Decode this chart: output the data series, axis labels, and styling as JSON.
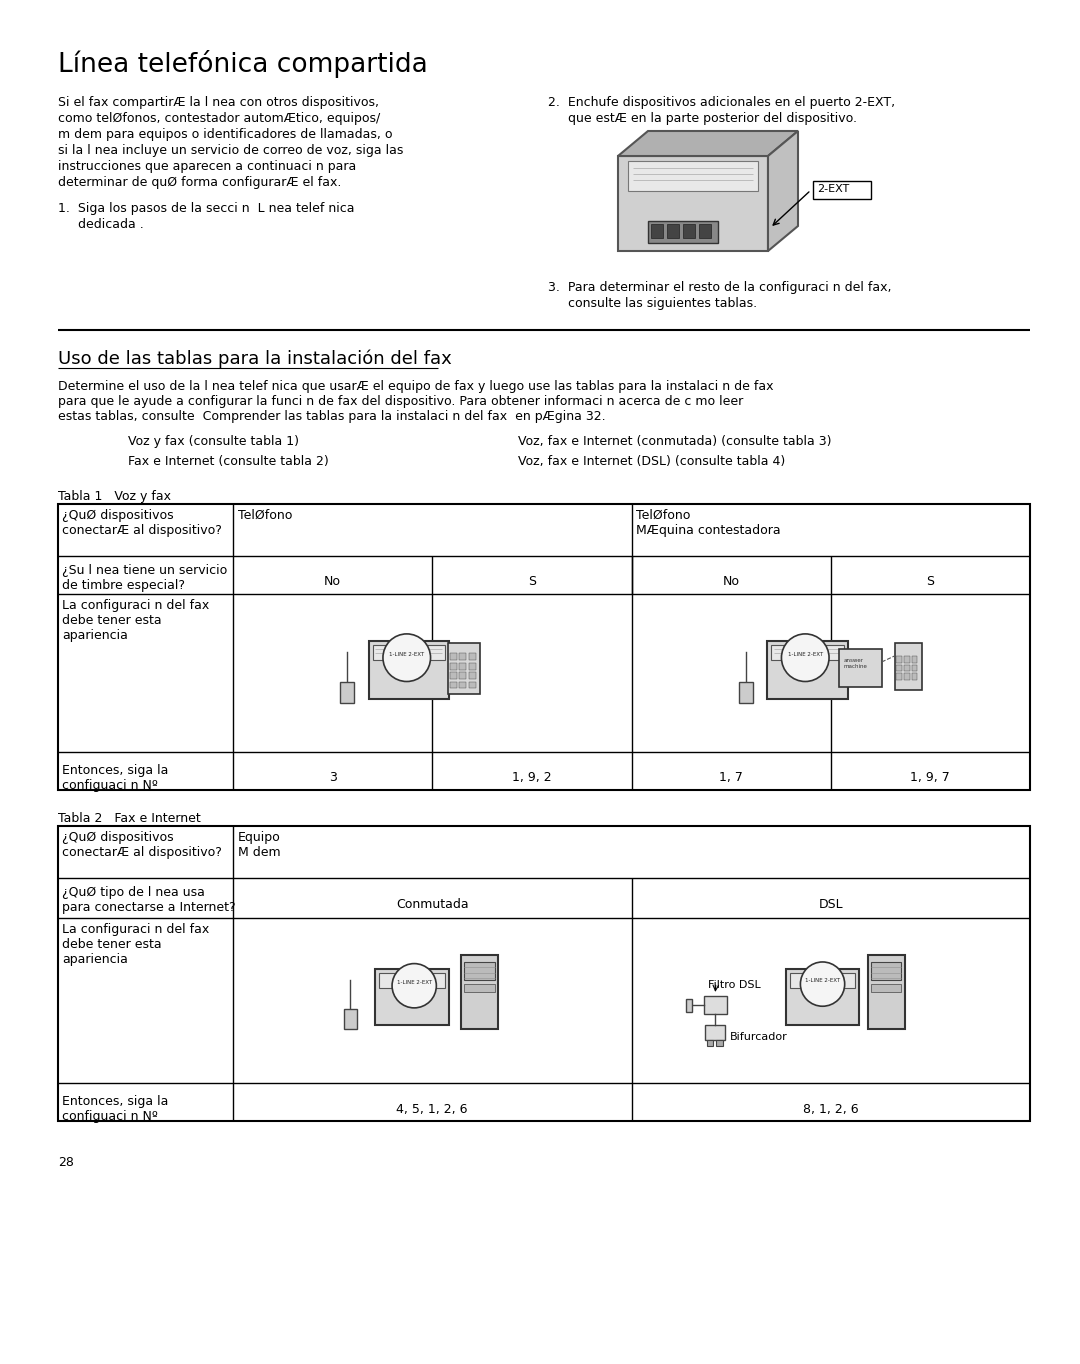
{
  "page_bg": "#ffffff",
  "title": "Línea telefónica compartida",
  "section2_title": "Uso de las tablas para la instalación del fax",
  "body_text_left": "Si el fax compartirÆ la l nea con otros dispositivos,\ncomo telØfonos, contestador automÆtico, equipos/\nm dem para equipos o identificadores de llamadas, o\nsi la l nea incluye un servicio de correo de voz, siga las\ninstrucciones que aparecen a continuaci n para\ndeterminar de quØ forma configurarÆ el fax.",
  "item1_line1": "1.  Siga los pasos de la secci n  L nea telef nica",
  "item1_line2": "     dedicada .",
  "item2_line1": "2.  Enchufe dispositivos adicionales en el puerto 2-EXT,",
  "item2_line2": "     que estÆ en la parte posterior del dispositivo.",
  "item3_line1": "3.  Para determinar el resto de la configuraci n del fax,",
  "item3_line2": "     consulte las siguientes tablas.",
  "section2_body_l1": "Determine el uso de la l nea telef nica que usarÆ el equipo de fax y luego use las tablas para la instalaci n de fax",
  "section2_body_l2": "para que le ayude a configurar la funci n de fax del dispositivo. Para obtener informaci n acerca de c mo leer",
  "section2_body_l3": "estas tablas, consulte  Comprender las tablas para la instalaci n del fax  en pÆgina 32.",
  "menu_item1": "Voz y fax (consulte tabla 1)",
  "menu_item2": "Fax e Internet (consulte tabla 2)",
  "menu_item3": "Voz, fax e Internet (conmutada) (consulte tabla 3)",
  "menu_item4": "Voz, fax e Internet (DSL) (consulte tabla 4)",
  "tabla1_title": "Tabla 1   Voz y fax",
  "tabla2_title": "Tabla 2   Fax e Internet",
  "t1_r1c1": "",
  "t1_r1c2": "TelØfono",
  "t1_r1c3": "TelØfono\nMÆquina contestadora",
  "t1_r2c1": "¿Su l nea tiene un servicio\nde timbre especial?",
  "t1_r3c1": "La configuraci n del fax\ndebe tener esta\napariencia",
  "t1_r4c1": "Entonces, siga la\nconfiguaci n Nº",
  "t1_r4_vals": [
    "3",
    "1, 9, 2",
    "1, 7",
    "1, 9, 7"
  ],
  "t1_r1c1_q": "¿QuØ dispositivos\nconectarÆ al dispositivo?",
  "t2_r1c1": "¿QuØ dispositivos\nconectarÆ al dispositivo?",
  "t2_r1c2": "Equipo\nM dem",
  "t2_r2c1": "¿QuØ tipo de l nea usa\npara conectarse a Internet?",
  "t2_r2c2": "Conmutada",
  "t2_r2c3": "DSL",
  "t2_r3c1": "La configuraci n del fax\ndebe tener esta\napariencia",
  "t2_r4c1": "Entonces, siga la\nconfiguaci n Nº",
  "t2_r4c2": "4, 5, 1, 2, 6",
  "t2_r4c3": "8, 1, 2, 6",
  "page_number": "28"
}
